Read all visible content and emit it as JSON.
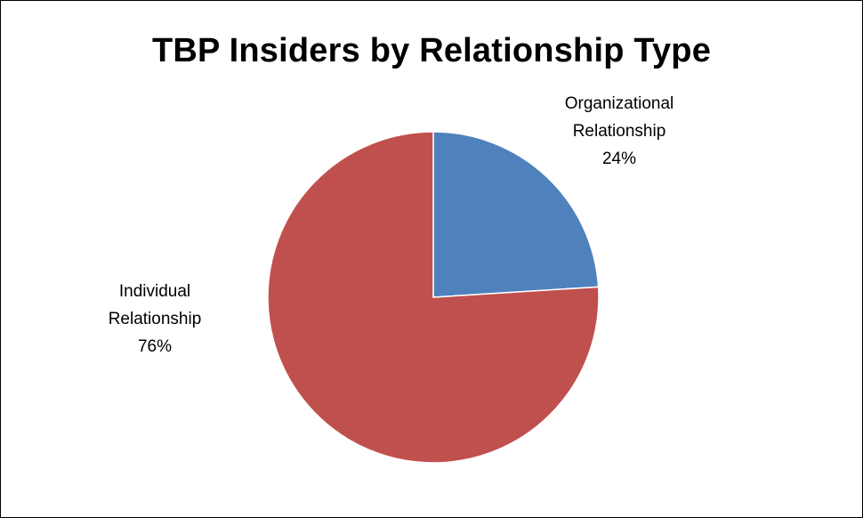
{
  "chart_data": {
    "type": "pie",
    "title": "TBP Insiders by Relationship Type",
    "categories": [
      "Organizational Relationship",
      "Individual Relationship"
    ],
    "values": [
      24,
      76
    ],
    "unit": "%",
    "colors": [
      "#4f81bd",
      "#c0504d"
    ],
    "labels": [
      {
        "line1": "Organizational",
        "line2": "Relationship",
        "pct": "24%"
      },
      {
        "line1": "Individual",
        "line2": "Relationship",
        "pct": "76%"
      }
    ]
  }
}
